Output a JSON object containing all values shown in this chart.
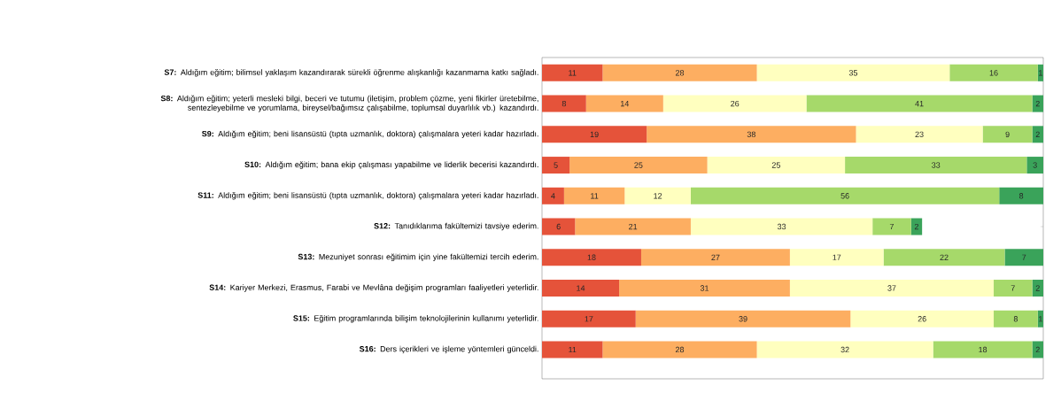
{
  "chart_data": {
    "type": "bar",
    "orientation": "horizontal",
    "stacked": true,
    "data_labels": true,
    "tick_labels": "y",
    "categories": [
      "**S7:** Aldığım eğitim; bilimsel yaklaşım kazandırarak sürekli öğrenme alışkanlığı kazanmama katkı sağladı.",
      "**S8:** Aldığım eğitim; yeterli mesleki bilgi, beceri ve tutumu (iletişim, problem çözme, yeni fikirler üretebilme, sentezleyebilme ve yorumlama, bireysel/bağımsız çalışabilme, toplumsal duyarlılık vb.) kazandırdı.",
      "**S9:** Aldığım eğitim; beni lisansüstü (tıpta uzmanlık, doktora) çalışmalara yeteri kadar hazırladı.",
      "**S10:** Aldığım eğitim; bana ekip çalışması yapabilme ve liderlik becerisi kazandırdı.",
      "**S11:** Aldığım eğitim; beni lisansüstü (tıpta uzmanlık, doktora) çalışmalara yeteri kadar hazırladı.",
      "**S12:** Tanıdıklarıma fakültemizi tavsiye ederim.",
      "**S13:** Mezuniyet sonrası eğitimim için yine fakültemizi tercih ederim.",
      "**S14:** Kariyer Merkezi, Erasmus, Farabi ve Mevlâna değişim programları faaliyetleri yeterlidir.",
      "**S15:** Eğitim programlarında bilişim teknolojilerinin kullanımı yeterlidir.",
      "**S16:** Ders içerikleri ve işleme yöntemleri günceldi."
    ],
    "series": [
      {
        "color": "#e5533a",
        "values": [
          11,
          8,
          19,
          5,
          4,
          6,
          18,
          14,
          17,
          11
        ]
      },
      {
        "color": "#fdae61",
        "values": [
          28,
          14,
          38,
          25,
          11,
          21,
          27,
          31,
          39,
          28
        ]
      },
      {
        "color": "#ffffbf",
        "values": [
          35,
          26,
          23,
          25,
          12,
          33,
          17,
          37,
          26,
          32
        ]
      },
      {
        "color": "#a6d96a",
        "values": [
          16,
          41,
          9,
          33,
          56,
          7,
          22,
          7,
          8,
          18
        ]
      },
      {
        "color": "#3aa35a",
        "values": [
          1,
          2,
          2,
          3,
          8,
          2,
          7,
          2,
          1,
          2
        ]
      }
    ]
  }
}
